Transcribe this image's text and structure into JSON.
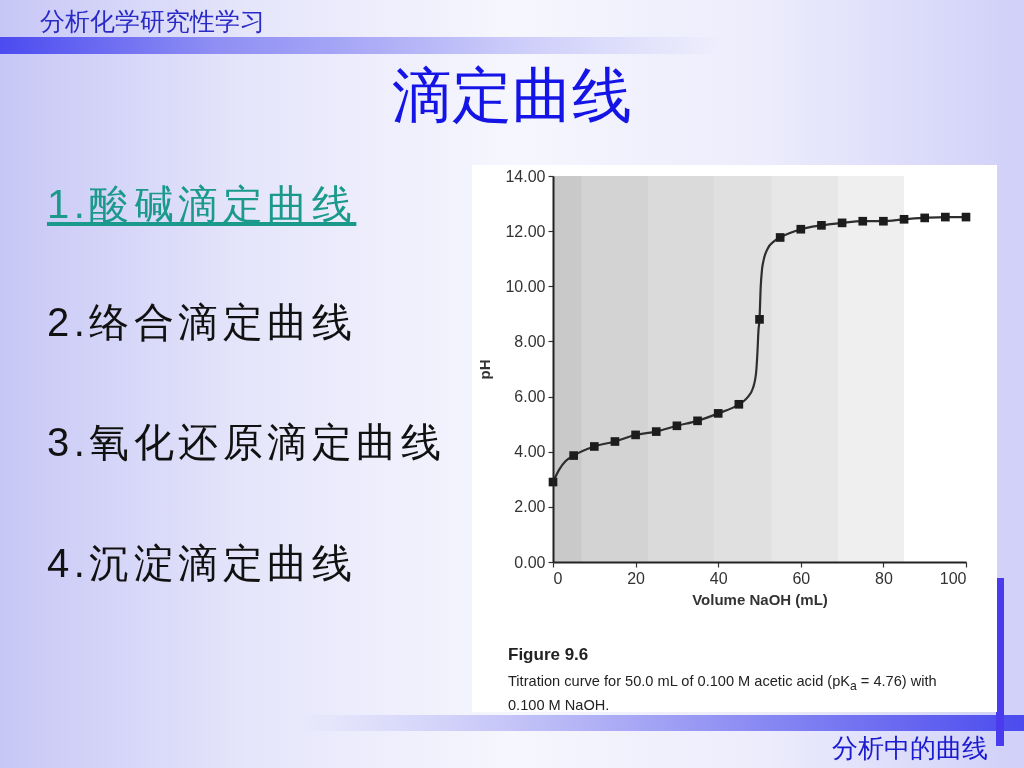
{
  "chart_data": {
    "type": "line",
    "title": "滴定曲线",
    "xlabel": "Volume NaOH (mL)",
    "ylabel": "pH",
    "xlim": [
      0,
      100
    ],
    "ylim": [
      0,
      14
    ],
    "xticks": [
      0,
      20,
      40,
      60,
      80,
      100
    ],
    "yticks": [
      {
        "value": 0,
        "label": "0.00"
      },
      {
        "value": 2,
        "label": "2.00"
      },
      {
        "value": 4,
        "label": "4.00"
      },
      {
        "value": 6,
        "label": "6.00"
      },
      {
        "value": 8,
        "label": "8.00"
      },
      {
        "value": 10,
        "label": "10.00"
      },
      {
        "value": 12,
        "label": "12.00"
      },
      {
        "value": 14,
        "label": "14.00"
      }
    ],
    "grid": false,
    "bands": [
      {
        "axis": "x",
        "from": 0,
        "to": 7,
        "color": "#c9c9c9"
      },
      {
        "axis": "x",
        "from": 7,
        "to": 23,
        "color": "#d3d3d3"
      },
      {
        "axis": "x",
        "from": 23,
        "to": 39,
        "color": "#dadada"
      },
      {
        "axis": "x",
        "from": 39,
        "to": 53,
        "color": "#e0e0e0"
      },
      {
        "axis": "x",
        "from": 53,
        "to": 69,
        "color": "#e7e7e7"
      },
      {
        "axis": "x",
        "from": 69,
        "to": 85,
        "color": "#efefef"
      }
    ],
    "series": [
      {
        "type": "line",
        "color": "#2e2e2e",
        "x": [
          0,
          1.5,
          3,
          5,
          10,
          15,
          20,
          25,
          30,
          35,
          40,
          45,
          47,
          48.4,
          49.2,
          49.5,
          49.75,
          50,
          50.3,
          50.6,
          51,
          52,
          53.5,
          55,
          60,
          65,
          70,
          75,
          80,
          85,
          90,
          95,
          100
        ],
        "values": [
          2.9,
          3.35,
          3.65,
          3.86,
          4.19,
          4.37,
          4.61,
          4.73,
          4.94,
          5.12,
          5.39,
          5.72,
          5.95,
          6.3,
          6.9,
          7.6,
          8.4,
          8.8,
          10.0,
          10.6,
          10.95,
          11.37,
          11.63,
          11.77,
          12.07,
          12.21,
          12.3,
          12.36,
          12.36,
          12.43,
          12.48,
          12.51,
          12.51
        ]
      },
      {
        "type": "scatter",
        "marker": "square",
        "color": "#1c1c1c",
        "x": [
          0,
          5,
          10,
          15,
          20,
          25,
          30,
          35,
          40,
          45,
          50,
          55,
          60,
          65,
          70,
          75,
          80,
          85,
          90,
          95,
          100
        ],
        "values": [
          2.9,
          3.86,
          4.19,
          4.37,
          4.61,
          4.73,
          4.94,
          5.12,
          5.39,
          5.72,
          8.8,
          11.77,
          12.07,
          12.21,
          12.3,
          12.36,
          12.36,
          12.43,
          12.48,
          12.51,
          12.51
        ]
      }
    ],
    "annotations": [
      "分析化学研究性学习",
      "1.酸碱滴定曲线",
      "2.络合滴定曲线",
      "3.氧化还原滴定曲线",
      "4.沉淀滴定曲线",
      "Figure 9.6",
      "Titration curve for 50.0 mL of 0.100 M acetic acid (pK$_{a}$ = 4.76) with 0.100 M NaOH.",
      "分析中的曲线"
    ]
  }
}
